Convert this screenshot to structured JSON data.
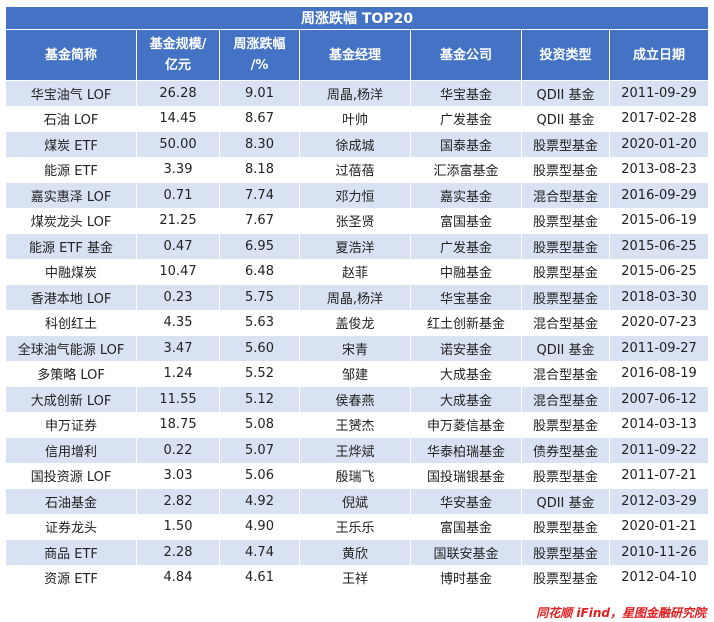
{
  "title": "周涨跌幅 TOP20",
  "headers": {
    "name": "基金简称",
    "scale_line1": "基金规模/",
    "scale_line2": "亿元",
    "change_line1": "周涨跌幅",
    "change_line2": "/%",
    "manager": "基金经理",
    "company": "基金公司",
    "type": "投资类型",
    "date": "成立日期"
  },
  "rows": [
    {
      "name": "华宝油气 LOF",
      "scale": "26.28",
      "change": "9.01",
      "manager": "周晶,杨洋",
      "company": "华宝基金",
      "type": "QDII 基金",
      "date": "2011-09-29"
    },
    {
      "name": "石油 LOF",
      "scale": "14.45",
      "change": "8.67",
      "manager": "叶帅",
      "company": "广发基金",
      "type": "QDII 基金",
      "date": "2017-02-28"
    },
    {
      "name": "煤炭 ETF",
      "scale": "50.00",
      "change": "8.30",
      "manager": "徐成城",
      "company": "国泰基金",
      "type": "股票型基金",
      "date": "2020-01-20"
    },
    {
      "name": "能源 ETF",
      "scale": "3.39",
      "change": "8.18",
      "manager": "过蓓蓓",
      "company": "汇添富基金",
      "type": "股票型基金",
      "date": "2013-08-23"
    },
    {
      "name": "嘉实惠泽 LOF",
      "scale": "0.71",
      "change": "7.74",
      "manager": "邓力恒",
      "company": "嘉实基金",
      "type": "混合型基金",
      "date": "2016-09-29"
    },
    {
      "name": "煤炭龙头 LOF",
      "scale": "21.25",
      "change": "7.67",
      "manager": "张圣贤",
      "company": "富国基金",
      "type": "股票型基金",
      "date": "2015-06-19"
    },
    {
      "name": "能源 ETF 基金",
      "scale": "0.47",
      "change": "6.95",
      "manager": "夏浩洋",
      "company": "广发基金",
      "type": "股票型基金",
      "date": "2015-06-25"
    },
    {
      "name": "中融煤炭",
      "scale": "10.47",
      "change": "6.48",
      "manager": "赵菲",
      "company": "中融基金",
      "type": "股票型基金",
      "date": "2015-06-25"
    },
    {
      "name": "香港本地 LOF",
      "scale": "0.23",
      "change": "5.75",
      "manager": "周晶,杨洋",
      "company": "华宝基金",
      "type": "股票型基金",
      "date": "2018-03-30"
    },
    {
      "name": "科创红土",
      "scale": "4.35",
      "change": "5.63",
      "manager": "盖俊龙",
      "company": "红土创新基金",
      "type": "混合型基金",
      "date": "2020-07-23"
    },
    {
      "name": "全球油气能源 LOF",
      "scale": "3.47",
      "change": "5.60",
      "manager": "宋青",
      "company": "诺安基金",
      "type": "QDII 基金",
      "date": "2011-09-27"
    },
    {
      "name": "多策略 LOF",
      "scale": "1.24",
      "change": "5.52",
      "manager": "邹建",
      "company": "大成基金",
      "type": "混合型基金",
      "date": "2016-08-19"
    },
    {
      "name": "大成创新 LOF",
      "scale": "11.55",
      "change": "5.12",
      "manager": "侯春燕",
      "company": "大成基金",
      "type": "混合型基金",
      "date": "2007-06-12"
    },
    {
      "name": "申万证券",
      "scale": "18.75",
      "change": "5.08",
      "manager": "王赟杰",
      "company": "申万菱信基金",
      "type": "股票型基金",
      "date": "2014-03-13"
    },
    {
      "name": "信用增利",
      "scale": "0.22",
      "change": "5.07",
      "manager": "王烨斌",
      "company": "华泰柏瑞基金",
      "type": "债券型基金",
      "date": "2011-09-22"
    },
    {
      "name": "国投资源 LOF",
      "scale": "3.03",
      "change": "5.06",
      "manager": "殷瑞飞",
      "company": "国投瑞银基金",
      "type": "股票型基金",
      "date": "2011-07-21"
    },
    {
      "name": "石油基金",
      "scale": "2.82",
      "change": "4.92",
      "manager": "倪斌",
      "company": "华安基金",
      "type": "QDII 基金",
      "date": "2012-03-29"
    },
    {
      "name": "证券龙头",
      "scale": "1.50",
      "change": "4.90",
      "manager": "王乐乐",
      "company": "富国基金",
      "type": "股票型基金",
      "date": "2020-01-21"
    },
    {
      "name": "商品 ETF",
      "scale": "2.28",
      "change": "4.74",
      "manager": "黄欣",
      "company": "国联安基金",
      "type": "股票型基金",
      "date": "2010-11-26"
    },
    {
      "name": "资源 ETF",
      "scale": "4.84",
      "change": "4.61",
      "manager": "王祥",
      "company": "博时基金",
      "type": "股票型基金",
      "date": "2012-04-10"
    }
  ],
  "source": "同花顺 iFind，星图金融研究院"
}
